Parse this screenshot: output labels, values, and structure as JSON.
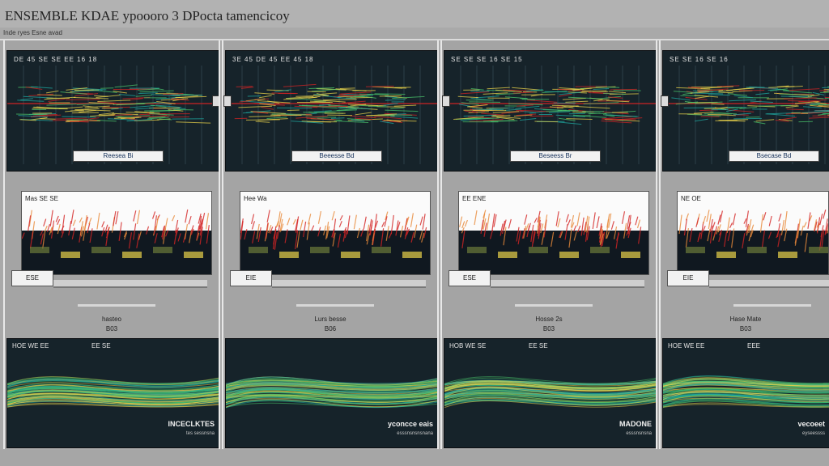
{
  "app": {
    "title": "ENSEMBLE KDAE ypoooro 3 DPocta tamencicoy",
    "subtitle": "Inde ryes Esne avad"
  },
  "columns": [
    {
      "top_label": "DE 45 SE SE EE 16 18",
      "badge": "Reesea Bi",
      "mid_label": "Mas SE SE",
      "chip": "ESE",
      "caption1": "hasteo",
      "caption2": "B03",
      "bottom_label_left": "HOE WE EE",
      "bottom_label_right": "EE SE",
      "bottom_caption": "INCECLKTES",
      "bottom_sub": "tes sessnsna"
    },
    {
      "top_label": "3E 45 DE 45 EE 45 18",
      "badge": "Beeesse Bd",
      "mid_label": "Hee Wa",
      "chip": "EIE",
      "caption1": "Lurs besse",
      "caption2": "B06",
      "bottom_label_left": "",
      "bottom_label_right": "",
      "bottom_caption": "yconcce eais",
      "bottom_sub": "esssnsnsnsnana"
    },
    {
      "top_label": "SE SE SE 16 SE 15",
      "badge": "Beseess Br",
      "mid_label": "EE ENE",
      "chip": "ESE",
      "caption1": "Hosse 2s",
      "caption2": "B03",
      "bottom_label_left": "HOB WE SE",
      "bottom_label_right": "EE SE",
      "bottom_caption": "MADONE",
      "bottom_sub": "esssnsnsna"
    },
    {
      "top_label": "SE SE 16 SE 16",
      "badge": "Bsecase Bd",
      "mid_label": "NE OE",
      "chip": "EIE",
      "caption1": "Hase Mate",
      "caption2": "B03",
      "bottom_label_left": "HOE WE EE",
      "bottom_label_right": "EEE",
      "bottom_caption": "vecoeet",
      "bottom_sub": "eyseessss"
    }
  ],
  "colors": {
    "panel_dark": "#16232a",
    "heat_red": "#d42424",
    "heat_yellow": "#e9d24a",
    "heat_green": "#49c46a",
    "heat_teal": "#1fa8a0"
  }
}
